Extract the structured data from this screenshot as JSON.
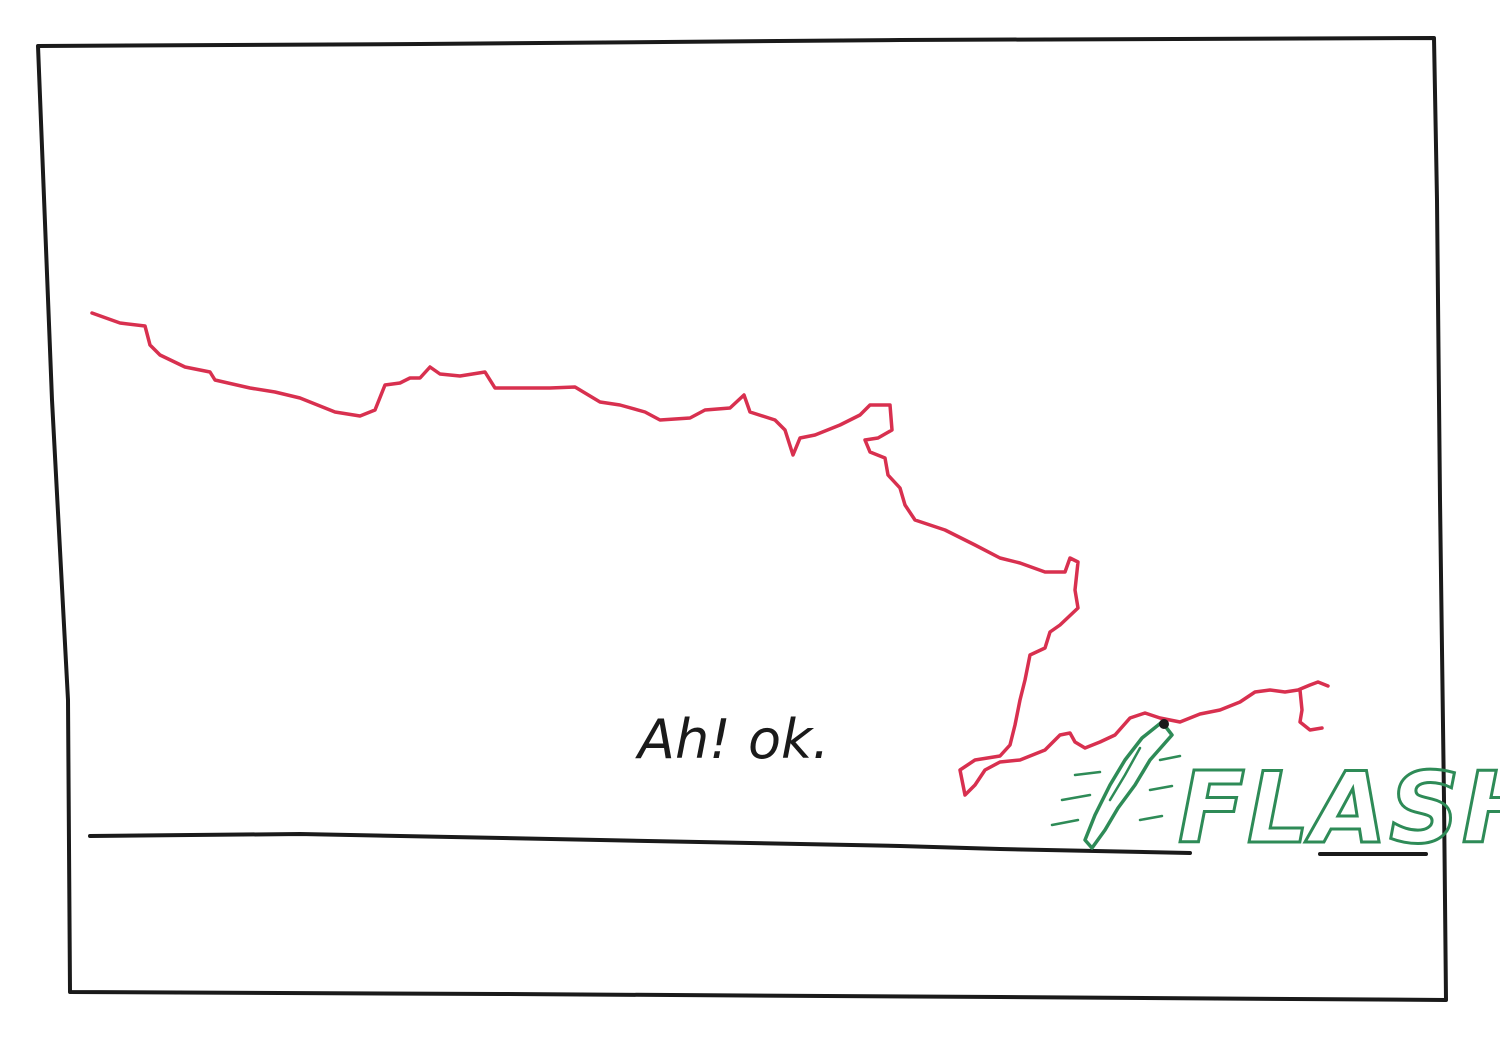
{
  "panel": {
    "speech_text": "Ah! ok.",
    "sound_effect_text": "FLASH"
  },
  "colors": {
    "ink": "#1a1a1a",
    "stroke_red": "#d8304f",
    "flash_green": "#2e8b57",
    "paper": "#ffffff"
  },
  "icons": {
    "lightning_bolt": "lightning-bolt-icon"
  }
}
